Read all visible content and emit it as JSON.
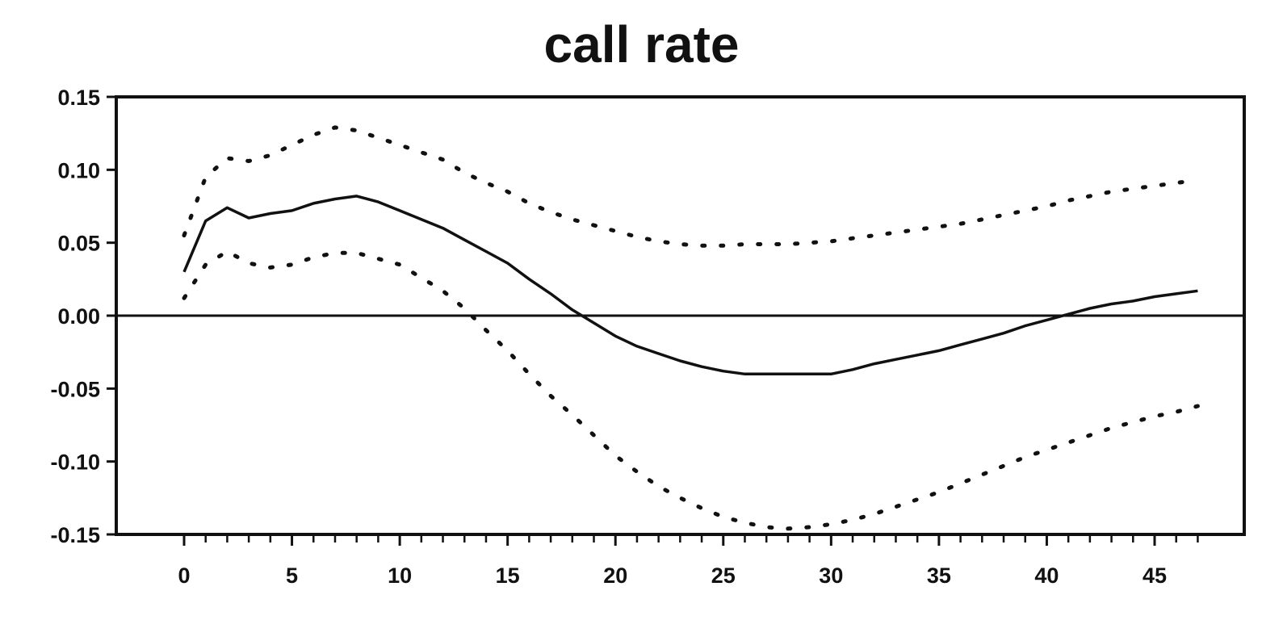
{
  "chart_data": {
    "type": "line",
    "title": "call rate",
    "xlabel": "",
    "ylabel": "",
    "xlim": [
      0,
      50
    ],
    "ylim": [
      -0.15,
      0.15
    ],
    "x_ticks": [
      0,
      5,
      10,
      15,
      20,
      25,
      30,
      35,
      40,
      45
    ],
    "x_tick_labels": [
      "0",
      "5",
      "10",
      "15",
      "20",
      "25",
      "30",
      "35",
      "40",
      "45"
    ],
    "y_ticks": [
      0.15,
      0.1,
      0.05,
      0.0,
      -0.05,
      -0.1,
      -0.15
    ],
    "y_tick_labels": [
      "0.15",
      "0.10",
      "0.05",
      "0.00",
      "-0.05",
      "-0.10",
      "-0.15"
    ],
    "grid": false,
    "zero_line": true,
    "colors": {
      "line": "#111111",
      "axis": "#111111"
    },
    "x": [
      0,
      1,
      2,
      3,
      4,
      5,
      6,
      7,
      8,
      9,
      10,
      11,
      12,
      13,
      14,
      15,
      16,
      17,
      18,
      19,
      20,
      21,
      22,
      23,
      24,
      25,
      26,
      27,
      28,
      29,
      30,
      31,
      32,
      33,
      34,
      35,
      36,
      37,
      38,
      39,
      40,
      41,
      42,
      43,
      44,
      45,
      46,
      47
    ],
    "series": [
      {
        "style": "solid",
        "values": [
          0.03,
          0.065,
          0.074,
          0.067,
          0.07,
          0.072,
          0.077,
          0.08,
          0.082,
          0.078,
          0.072,
          0.066,
          0.06,
          0.052,
          0.044,
          0.036,
          0.025,
          0.015,
          0.004,
          -0.005,
          -0.014,
          -0.021,
          -0.026,
          -0.031,
          -0.035,
          -0.038,
          -0.04,
          -0.04,
          -0.04,
          -0.04,
          -0.04,
          -0.037,
          -0.033,
          -0.03,
          -0.027,
          -0.024,
          -0.02,
          -0.016,
          -0.012,
          -0.007,
          -0.003,
          0.001,
          0.005,
          0.008,
          0.01,
          0.013,
          0.015,
          0.017
        ]
      },
      {
        "style": "dotted",
        "values": [
          0.055,
          0.095,
          0.108,
          0.106,
          0.11,
          0.117,
          0.124,
          0.129,
          0.127,
          0.122,
          0.117,
          0.112,
          0.107,
          0.098,
          0.091,
          0.085,
          0.077,
          0.071,
          0.066,
          0.062,
          0.058,
          0.054,
          0.051,
          0.049,
          0.048,
          0.048,
          0.049,
          0.049,
          0.049,
          0.05,
          0.051,
          0.053,
          0.055,
          0.057,
          0.059,
          0.061,
          0.063,
          0.066,
          0.069,
          0.072,
          0.075,
          0.079,
          0.082,
          0.085,
          0.087,
          0.089,
          0.091,
          0.093
        ]
      },
      {
        "style": "dotted",
        "values": [
          0.012,
          0.035,
          0.044,
          0.036,
          0.033,
          0.035,
          0.04,
          0.043,
          0.043,
          0.039,
          0.035,
          0.026,
          0.017,
          0.005,
          -0.01,
          -0.024,
          -0.04,
          -0.055,
          -0.068,
          -0.082,
          -0.096,
          -0.107,
          -0.117,
          -0.125,
          -0.132,
          -0.138,
          -0.142,
          -0.145,
          -0.146,
          -0.145,
          -0.143,
          -0.14,
          -0.136,
          -0.131,
          -0.126,
          -0.121,
          -0.115,
          -0.109,
          -0.103,
          -0.097,
          -0.092,
          -0.087,
          -0.082,
          -0.077,
          -0.073,
          -0.069,
          -0.066,
          -0.062
        ]
      }
    ]
  }
}
